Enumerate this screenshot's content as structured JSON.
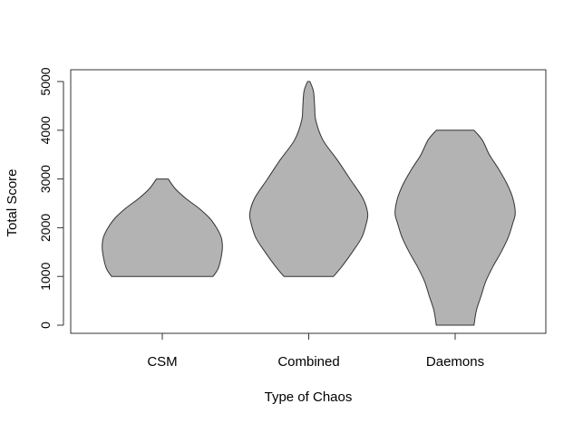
{
  "chart_data": {
    "type": "violin",
    "title": "",
    "xlabel": "Type of Chaos",
    "ylabel": "Total Score",
    "ylim": [
      -200,
      5300
    ],
    "yticks": [
      0,
      1000,
      2000,
      3000,
      4000,
      5000
    ],
    "yticklabels": [
      "0",
      "1000",
      "2000",
      "3000",
      "4000",
      "5000"
    ],
    "categories": [
      "CSM",
      "Combined",
      "Daemons"
    ],
    "fill": "#b3b3b3",
    "stroke": "#333333",
    "grid": false,
    "legend": "none",
    "violins": [
      {
        "category": "CSM",
        "min": 1000,
        "max": 3000,
        "profile": [
          [
            1000,
            0.43
          ],
          [
            1100,
            0.46
          ],
          [
            1200,
            0.48
          ],
          [
            1400,
            0.5
          ],
          [
            1600,
            0.51
          ],
          [
            1800,
            0.5
          ],
          [
            2000,
            0.46
          ],
          [
            2200,
            0.4
          ],
          [
            2400,
            0.31
          ],
          [
            2600,
            0.2
          ],
          [
            2800,
            0.11
          ],
          [
            3000,
            0.05
          ]
        ]
      },
      {
        "category": "Combined",
        "min": 1000,
        "max": 5000,
        "profile": [
          [
            1000,
            0.21
          ],
          [
            1200,
            0.28
          ],
          [
            1500,
            0.37
          ],
          [
            1800,
            0.45
          ],
          [
            2100,
            0.49
          ],
          [
            2300,
            0.5
          ],
          [
            2600,
            0.46
          ],
          [
            3000,
            0.35
          ],
          [
            3400,
            0.24
          ],
          [
            3800,
            0.12
          ],
          [
            4200,
            0.06
          ],
          [
            4500,
            0.05
          ],
          [
            4800,
            0.04
          ],
          [
            5000,
            0.01
          ]
        ]
      },
      {
        "category": "Daemons",
        "min": 0,
        "max": 4000,
        "profile": [
          [
            0,
            0.16
          ],
          [
            300,
            0.18
          ],
          [
            600,
            0.22
          ],
          [
            900,
            0.26
          ],
          [
            1200,
            0.32
          ],
          [
            1500,
            0.39
          ],
          [
            1800,
            0.45
          ],
          [
            2100,
            0.49
          ],
          [
            2300,
            0.51
          ],
          [
            2600,
            0.49
          ],
          [
            2900,
            0.44
          ],
          [
            3200,
            0.37
          ],
          [
            3500,
            0.29
          ],
          [
            3800,
            0.23
          ],
          [
            4000,
            0.16
          ]
        ]
      }
    ]
  }
}
